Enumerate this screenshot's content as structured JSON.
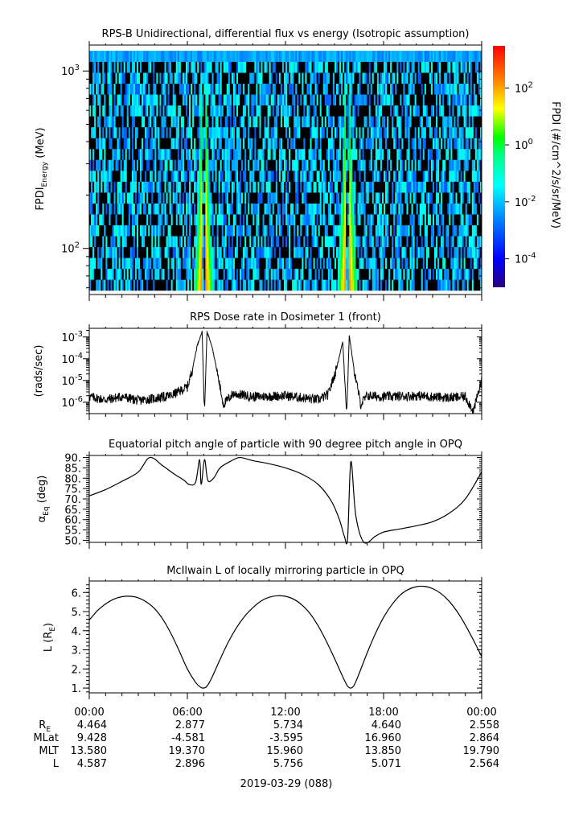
{
  "panels": {
    "spectrogram": {
      "title": "RPS-B  Unidirectional, differential flux vs energy (Isotropic assumption)",
      "ylabel_main": "FPDI",
      "ylabel_sub": "Energy",
      "ylabel_unit": "(MeV)",
      "colorbar_label": "FPDI (#/cm^2/s/sr/MeV)"
    },
    "dose": {
      "title": "RPS  Dose rate in Dosimeter 1 (front)",
      "ylabel": "(rads/sec)"
    },
    "pitch": {
      "title": "Equatorial pitch angle of particle with 90 degree pitch angle in OPQ",
      "ylabel_main": "α",
      "ylabel_sub": "Eq",
      "ylabel_unit": "(deg)"
    },
    "lshell": {
      "title": "McIlwain L of locally mirroring particle in OPQ",
      "ylabel_main": "L (R",
      "ylabel_sub": "E",
      "ylabel_end": ")"
    }
  },
  "ephemeris": {
    "rows": [
      {
        "label": "R",
        "label_sub": "E",
        "values": [
          "4.464",
          "2.877",
          "5.734",
          "4.640",
          "2.558"
        ]
      },
      {
        "label": "MLat",
        "label_sub": "",
        "values": [
          "9.428",
          "-4.581",
          "-3.595",
          "16.960",
          "2.864"
        ]
      },
      {
        "label": "MLT",
        "label_sub": "",
        "values": [
          "13.580",
          "19.370",
          "15.960",
          "13.850",
          "19.790"
        ]
      },
      {
        "label": "L",
        "label_sub": "",
        "values": [
          "4.587",
          "2.896",
          "5.756",
          "5.071",
          "2.564"
        ]
      }
    ],
    "date": "2019-03-29 (088)"
  },
  "chart_data": [
    {
      "type": "heatmap",
      "title": "RPS-B  Unidirectional, differential flux vs energy (Isotropic assumption)",
      "xlabel": "",
      "ylabel": "FPDI Energy (MeV)",
      "x_range_hours": [
        0,
        24
      ],
      "ylim": [
        55,
        1400
      ],
      "yscale": "log",
      "y_ticks": [
        {
          "value": 100,
          "label": "10^2"
        },
        {
          "value": 1000,
          "label": "10^3"
        }
      ],
      "features": [
        {
          "name": "inner belt crossing 1",
          "center_hour": 7.0,
          "peak_flux_at_60MeV": 300
        },
        {
          "name": "inner belt crossing 2",
          "center_hour": 15.8,
          "peak_flux_at_60MeV": 300
        }
      ],
      "background": "sparse noise near 1e-2 to 1e-3 with gaps (no data shown as black)",
      "colorbar": {
        "label": "FPDI (#/cm^2/s/sr/MeV)",
        "scale": "log",
        "range": [
          1e-05,
          3000
        ],
        "ticks": [
          {
            "value": 100,
            "label": "10^2"
          },
          {
            "value": 1,
            "label": "10^0"
          },
          {
            "value": 0.01,
            "label": "10^-2"
          },
          {
            "value": 0.0001,
            "label": "10^-4"
          }
        ],
        "colormap": [
          "#2a0080",
          "#0000ff",
          "#0080ff",
          "#00ffff",
          "#00ff80",
          "#00ff00",
          "#ffff00",
          "#ff8000",
          "#ff0000"
        ]
      }
    },
    {
      "type": "line",
      "title": "RPS  Dose rate in Dosimeter 1 (front)",
      "ylabel": "(rads/sec)",
      "yscale": "log",
      "ylim": [
        3e-07,
        0.0025
      ],
      "y_ticks": [
        {
          "value": 1e-06,
          "label": "10^-6"
        },
        {
          "value": 1e-05,
          "label": "10^-5"
        },
        {
          "value": 0.0001,
          "label": "10^-4"
        },
        {
          "value": 0.001,
          "label": "10^-3"
        }
      ],
      "x": [
        0,
        1,
        2,
        3,
        4,
        5,
        6,
        6.3,
        6.6,
        6.9,
        7.05,
        7.2,
        7.5,
        7.8,
        8.2,
        8.8,
        10,
        12,
        14,
        14.6,
        15.1,
        15.5,
        15.75,
        15.9,
        16.2,
        16.6,
        17,
        18,
        20,
        22,
        23,
        23.5,
        24
      ],
      "values": [
        1.8e-06,
        1.3e-06,
        1.8e-06,
        1.2e-06,
        1.5e-06,
        2e-06,
        5e-06,
        3e-05,
        0.0004,
        0.0018,
        3e-07,
        0.0018,
        0.0004,
        3e-05,
        8e-07,
        2.5e-06,
        1.8e-06,
        2e-06,
        1.3e-06,
        2.2e-06,
        3e-05,
        0.0006,
        3e-07,
        0.0012,
        3e-05,
        8e-07,
        2e-06,
        1.8e-06,
        2e-06,
        1.6e-06,
        1.8e-06,
        4e-07,
        1e-05
      ]
    },
    {
      "type": "line",
      "title": "Equatorial pitch angle of particle with 90 degree pitch angle in OPQ",
      "ylabel": "αEq (deg)",
      "ylim": [
        49,
        91
      ],
      "y_ticks": [
        50,
        55,
        60,
        65,
        70,
        75,
        80,
        85,
        90
      ],
      "x": [
        0,
        1,
        2,
        3,
        3.7,
        4.5,
        5.2,
        5.8,
        6.1,
        6.5,
        6.75,
        6.85,
        7.05,
        7.25,
        7.6,
        8,
        8.6,
        9.2,
        10,
        11,
        12,
        13,
        14,
        14.8,
        15.3,
        15.6,
        15.8,
        16.0,
        16.3,
        16.8,
        17.5,
        18,
        19,
        20,
        21,
        22,
        23,
        24
      ],
      "values": [
        71.5,
        74.5,
        78.5,
        83,
        90,
        86,
        82,
        79,
        77,
        78,
        89,
        77,
        89,
        79,
        80,
        85,
        88,
        90,
        88.5,
        87,
        85,
        82,
        77,
        69,
        60,
        52,
        51,
        88,
        62,
        49,
        52,
        54,
        55.5,
        57,
        59,
        63,
        70,
        83
      ]
    },
    {
      "type": "line",
      "title": "McIlwain L of locally mirroring particle in OPQ",
      "ylabel": "L (RE)",
      "ylim": [
        0.75,
        6.6
      ],
      "y_ticks": [
        1,
        2,
        3,
        4,
        5,
        6
      ],
      "x": [
        0,
        0.5,
        1,
        1.5,
        2,
        2.5,
        3,
        3.5,
        4,
        4.5,
        5,
        5.5,
        6,
        6.5,
        6.8,
        7.0,
        7.2,
        7.5,
        8,
        8.5,
        9,
        9.5,
        10,
        10.5,
        11,
        11.5,
        12,
        12.5,
        13,
        13.5,
        14,
        14.5,
        15,
        15.5,
        15.8,
        16.0,
        16.2,
        16.5,
        17,
        17.5,
        18,
        18.5,
        19,
        19.5,
        20,
        20.5,
        21,
        21.5,
        22,
        22.5,
        23,
        23.5,
        24
      ],
      "values": [
        4.55,
        5.05,
        5.4,
        5.65,
        5.78,
        5.8,
        5.72,
        5.5,
        5.15,
        4.6,
        3.85,
        2.95,
        2.0,
        1.3,
        1.05,
        1.0,
        1.1,
        1.55,
        2.5,
        3.4,
        4.15,
        4.75,
        5.2,
        5.55,
        5.75,
        5.83,
        5.8,
        5.65,
        5.35,
        4.9,
        4.25,
        3.45,
        2.55,
        1.6,
        1.1,
        1.0,
        1.15,
        1.75,
        2.85,
        3.85,
        4.7,
        5.35,
        5.85,
        6.15,
        6.3,
        6.32,
        6.2,
        5.95,
        5.55,
        5.0,
        4.3,
        3.5,
        2.65
      ]
    }
  ],
  "time_axis": {
    "tick_labels": [
      "00:00",
      "06:00",
      "12:00",
      "18:00",
      "00:00"
    ],
    "minor_tick_hours": 1
  }
}
